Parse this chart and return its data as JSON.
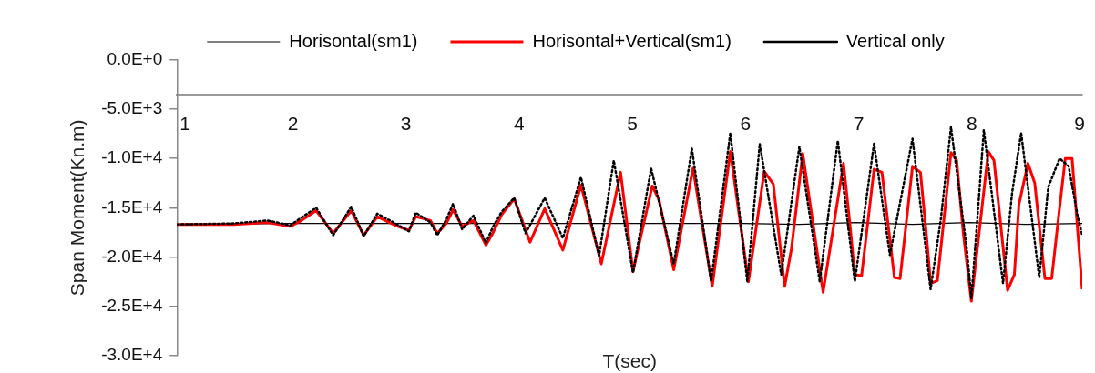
{
  "chart_data": {
    "type": "line",
    "xlabel": "T(sec)",
    "ylabel": "Span Moment(Kn.m)",
    "xlim": [
      1,
      9
    ],
    "xticks": [
      1,
      2,
      3,
      4,
      5,
      6,
      7,
      8,
      9
    ],
    "ylim": [
      -30000,
      0
    ],
    "yticks": [
      {
        "value": 0,
        "label": "0.0E+0"
      },
      {
        "value": -5000,
        "label": "-5.0E+3"
      },
      {
        "value": -10000,
        "label": "-1.0E+4"
      },
      {
        "value": -15000,
        "label": "-1.5E+4"
      },
      {
        "value": -20000,
        "label": "-2.0E+4"
      },
      {
        "value": -25000,
        "label": "-2.5E+4"
      },
      {
        "value": -30000,
        "label": "-3.0E+4"
      }
    ],
    "grid": false,
    "legend": "top",
    "marker": "none",
    "series": [
      {
        "name": "Horisontal(sm1)",
        "color": "#000000",
        "line_style": "solid",
        "x": [
          1,
          2,
          3,
          4,
          5,
          6,
          6.5,
          7,
          7.5,
          8,
          8.5,
          9
        ],
        "values": [
          -16700,
          -16600,
          -16600,
          -16600,
          -16600,
          -16600,
          -16700,
          -16500,
          -16700,
          -16500,
          -16700,
          -16600
        ]
      },
      {
        "name": "Horisontal+Vertical(sm1)",
        "color": "#ff0000",
        "line_style": "solid",
        "x": [
          1,
          1.5,
          1.8,
          2.0,
          2.1,
          2.23,
          2.38,
          2.54,
          2.65,
          2.77,
          2.93,
          3.05,
          3.11,
          3.24,
          3.3,
          3.38,
          3.44,
          3.52,
          3.62,
          3.73,
          3.79,
          3.87,
          3.98,
          4.12,
          4.25,
          4.41,
          4.57,
          4.75,
          4.92,
          5.03,
          5.07,
          5.2,
          5.26,
          5.39,
          5.56,
          5.73,
          5.89,
          6.05,
          6.19,
          6.27,
          6.37,
          6.43,
          6.53,
          6.71,
          6.89,
          6.94,
          6.99,
          7.05,
          7.16,
          7.23,
          7.34,
          7.39,
          7.5,
          7.57,
          7.62,
          7.66,
          7.72,
          7.84,
          7.89,
          7.95,
          8.02,
          8.17,
          8.22,
          8.34,
          8.4,
          8.44,
          8.52,
          8.58,
          8.67,
          8.73,
          8.79,
          8.85,
          8.91,
          9.0
        ],
        "values": [
          -16700,
          -16700,
          -16500,
          -16900,
          -16300,
          -15300,
          -17600,
          -15300,
          -17800,
          -15900,
          -16800,
          -17300,
          -15900,
          -16300,
          -17600,
          -16600,
          -15200,
          -16900,
          -16300,
          -18800,
          -17600,
          -15700,
          -14100,
          -18500,
          -15100,
          -19300,
          -12700,
          -20700,
          -11400,
          -21500,
          -19400,
          -12800,
          -14200,
          -21300,
          -11000,
          -23000,
          -9300,
          -22500,
          -11300,
          -12600,
          -23000,
          -19200,
          -9500,
          -23600,
          -10500,
          -15900,
          -21800,
          -21900,
          -11100,
          -11400,
          -22100,
          -22200,
          -10800,
          -11400,
          -17400,
          -22700,
          -22400,
          -9400,
          -10200,
          -17700,
          -24500,
          -9300,
          -10200,
          -23400,
          -21800,
          -14700,
          -10500,
          -12500,
          -22200,
          -22200,
          -16000,
          -10000,
          -10000,
          -23300
        ]
      },
      {
        "name": "Vertical only",
        "color": "#000000",
        "line_style": "dotted",
        "x": [
          1,
          1.5,
          1.8,
          2.0,
          2.1,
          2.23,
          2.38,
          2.54,
          2.65,
          2.77,
          2.93,
          3.05,
          3.11,
          3.24,
          3.3,
          3.38,
          3.44,
          3.52,
          3.62,
          3.73,
          3.79,
          3.87,
          3.98,
          4.08,
          4.25,
          4.41,
          4.57,
          4.73,
          4.86,
          5.03,
          5.19,
          5.39,
          5.55,
          5.72,
          5.89,
          6.04,
          6.15,
          6.34,
          6.5,
          6.68,
          6.84,
          6.99,
          7.16,
          7.3,
          7.5,
          7.66,
          7.75,
          7.84,
          7.98,
          8.02,
          8.09,
          8.13,
          8.3,
          8.38,
          8.46,
          8.62,
          8.7,
          8.8,
          8.88,
          8.96,
          9.0
        ],
        "values": [
          -16700,
          -16600,
          -16300,
          -16800,
          -16000,
          -15000,
          -17800,
          -14900,
          -17900,
          -15600,
          -16600,
          -17400,
          -15500,
          -16500,
          -17800,
          -16200,
          -14600,
          -17200,
          -15800,
          -18600,
          -17000,
          -15400,
          -14000,
          -17600,
          -14000,
          -18100,
          -11900,
          -19900,
          -10200,
          -21600,
          -11000,
          -20700,
          -9000,
          -22500,
          -7400,
          -22500,
          -8500,
          -21800,
          -8800,
          -22500,
          -8200,
          -22500,
          -8500,
          -19800,
          -8000,
          -23300,
          -16200,
          -6800,
          -19200,
          -24200,
          -13500,
          -7100,
          -22700,
          -13500,
          -7400,
          -22100,
          -12900,
          -10000,
          -10800,
          -15900,
          -17800
        ]
      }
    ]
  }
}
